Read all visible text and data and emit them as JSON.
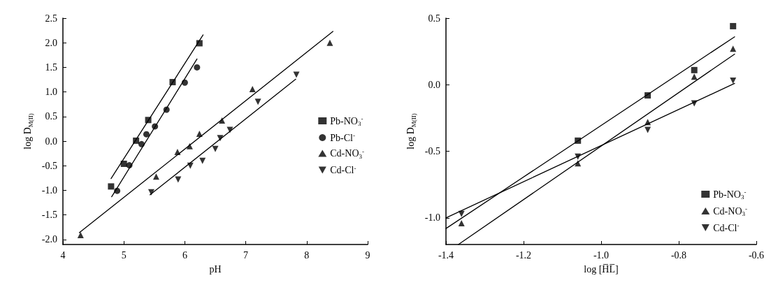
{
  "chart_data": [
    {
      "type": "scatter",
      "xlabel": "pH",
      "ylabel": "log D$_{M(II)}$",
      "xlim": [
        4,
        9
      ],
      "ylim": [
        -2.1,
        2.5
      ],
      "xticks": [
        4,
        5,
        6,
        7,
        8,
        9
      ],
      "yticks": [
        {
          "value": -2,
          "label": "-2.0"
        },
        {
          "value": -1.5,
          "label": "-1.5"
        },
        {
          "value": -1,
          "label": "-1.0"
        },
        {
          "value": -0.5,
          "label": "-0.5"
        },
        {
          "value": 0,
          "label": "0.0"
        },
        {
          "value": 0.5,
          "label": "0.5"
        },
        {
          "value": 1,
          "label": "1.0"
        },
        {
          "value": 1.5,
          "label": "1.5"
        },
        {
          "value": 2,
          "label": "2.0"
        },
        {
          "value": 2.5,
          "label": "2.5"
        }
      ],
      "legend": "right",
      "grid": false,
      "series": [
        {
          "name": "Pb-NO$_{3}$$^{-}$",
          "color": "#000000",
          "marker": "square",
          "x": [
            4.79,
            5.0,
            5.2,
            5.4,
            5.8,
            6.24
          ],
          "values": [
            -0.92,
            -0.46,
            0.01,
            0.43,
            1.2,
            1.99
          ]
        },
        {
          "name": "Pb-Cl$^{-}$",
          "color": "#000000",
          "marker": "circle",
          "x": [
            4.89,
            5.09,
            5.29,
            5.37,
            5.51,
            5.7,
            6.0,
            6.2
          ],
          "values": [
            -1.01,
            -0.49,
            -0.06,
            0.14,
            0.3,
            0.64,
            1.19,
            1.5
          ]
        },
        {
          "name": "Cd-NO$_{3}$$^{-}$",
          "color": "#000000",
          "marker": "triangle",
          "x": [
            4.29,
            5.53,
            5.88,
            6.08,
            6.24,
            6.61,
            7.11,
            8.38
          ],
          "values": [
            -1.91,
            -0.72,
            -0.22,
            -0.1,
            0.15,
            0.42,
            1.06,
            2.0
          ]
        },
        {
          "name": "Cd-Cl$^{-}$",
          "color": "#000000",
          "marker": "triangle-down",
          "x": [
            5.45,
            5.89,
            6.09,
            6.29,
            6.5,
            6.58,
            6.74,
            7.2,
            7.83
          ],
          "values": [
            -1.04,
            -0.78,
            -0.5,
            -0.4,
            -0.16,
            0.06,
            0.23,
            0.8,
            1.35
          ]
        },
        {
          "type": "line",
          "color": "#000000",
          "marker": "none",
          "x": [
            4.79,
            6.3
          ],
          "values": [
            -0.76,
            2.16
          ]
        },
        {
          "type": "line",
          "color": "#000000",
          "marker": "none",
          "x": [
            4.8,
            6.2
          ],
          "values": [
            -1.13,
            1.67
          ]
        },
        {
          "type": "line",
          "color": "#000000",
          "marker": "none",
          "x": [
            4.27,
            8.43
          ],
          "values": [
            -1.86,
            2.23
          ]
        },
        {
          "type": "line",
          "color": "#000000",
          "marker": "none",
          "x": [
            5.43,
            7.82
          ],
          "values": [
            -1.09,
            1.26
          ]
        }
      ]
    },
    {
      "type": "scatter",
      "xlabel": "log [H̅L̅]",
      "ylabel": "log D$_{M(II)}$",
      "xlim": [
        -1.4,
        -0.6
      ],
      "ylim": [
        -1.2,
        0.5
      ],
      "xticks": [
        -1.4,
        -1.2,
        {
          "value": -1,
          "label": "-1.0"
        },
        -0.8,
        -0.6
      ],
      "yticks": [
        {
          "value": -1,
          "label": "-1.0"
        },
        -0.5,
        {
          "value": 0,
          "label": "0.0"
        },
        0.5
      ],
      "legend": "bottom right",
      "grid": false,
      "series": [
        {
          "name": "Pb-NO$_{3}$$^{-}$",
          "color": "#000000",
          "marker": "square",
          "x": [
            -1.06,
            -0.88,
            -0.76,
            -0.66
          ],
          "values": [
            -0.42,
            -0.08,
            0.11,
            0.44
          ]
        },
        {
          "name": "Cd-NO$_{3}$$^{-}$",
          "color": "#000000",
          "marker": "triangle",
          "x": [
            -1.36,
            -1.06,
            -0.88,
            -0.76,
            -0.66
          ],
          "values": [
            -1.04,
            -0.59,
            -0.28,
            0.06,
            0.27
          ]
        },
        {
          "name": "Cd-Cl$^{-}$",
          "color": "#000000",
          "marker": "triangle-down",
          "x": [
            -1.36,
            -1.06,
            -0.88,
            -0.76,
            -0.66
          ],
          "values": [
            -0.97,
            -0.54,
            -0.34,
            -0.14,
            0.03
          ]
        },
        {
          "type": "line",
          "color": "#000000",
          "marker": "none",
          "x": [
            -1.4,
            -0.656
          ],
          "values": [
            -1.08,
            0.36
          ]
        },
        {
          "type": "line",
          "color": "#000000",
          "marker": "none",
          "x": [
            -1.368,
            -0.656
          ],
          "values": [
            -1.2,
            0.23
          ]
        },
        {
          "type": "line",
          "color": "#000000",
          "marker": "none",
          "x": [
            -1.4,
            -0.656
          ],
          "values": [
            -1.0,
            0.01
          ]
        }
      ]
    }
  ]
}
